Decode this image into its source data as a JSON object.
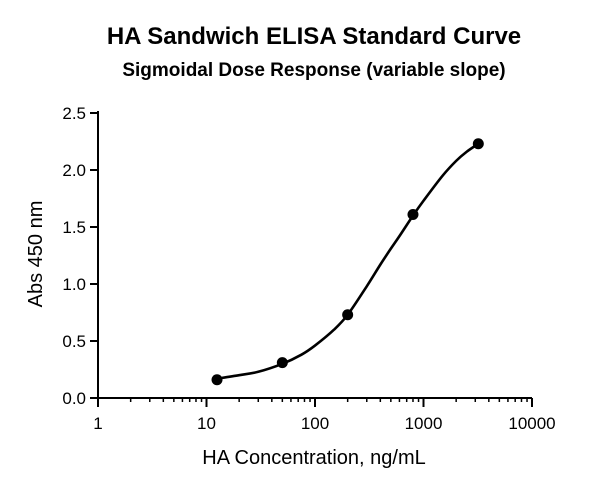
{
  "chart_data": {
    "type": "scatter",
    "title": "HA Sandwich ELISA Standard Curve",
    "subtitle": "Sigmoidal Dose Response (variable slope)",
    "xlabel": "HA Concentration, ng/mL",
    "ylabel": "Abs 450 nm",
    "x_scale": "log",
    "xlim": [
      1,
      10000
    ],
    "ylim": [
      0,
      2.5
    ],
    "x_ticks": [
      1,
      10,
      100,
      1000,
      10000
    ],
    "x_tick_labels": [
      "1",
      "10",
      "100",
      "1000",
      "10000"
    ],
    "y_ticks": [
      0,
      0.5,
      1.0,
      1.5,
      2.0,
      2.5
    ],
    "y_tick_labels": [
      "0.0",
      "0.5",
      "1.0",
      "1.5",
      "2.0",
      "2.5"
    ],
    "grid": false,
    "series": [
      {
        "x": [
          12.5,
          50,
          200,
          800,
          3200
        ],
        "y": [
          0.16,
          0.31,
          0.73,
          1.61,
          2.23
        ],
        "marker": "circle",
        "fit": "sigmoidal-variable-slope"
      }
    ],
    "fit_curve": {
      "x": [
        12.5,
        20,
        30,
        50,
        75,
        100,
        150,
        200,
        300,
        400,
        500,
        600,
        800,
        1000,
        1500,
        2000,
        2500,
        3200
      ],
      "y": [
        0.17,
        0.2,
        0.23,
        0.3,
        0.38,
        0.46,
        0.6,
        0.73,
        0.98,
        1.17,
        1.31,
        1.42,
        1.6,
        1.73,
        1.95,
        2.08,
        2.16,
        2.23
      ]
    },
    "colors": {
      "line": "#000000",
      "marker": "#000000",
      "background": "#ffffff"
    }
  }
}
